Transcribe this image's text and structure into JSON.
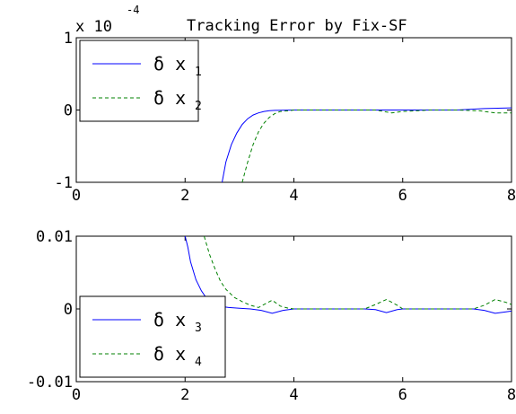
{
  "chart_data": [
    {
      "type": "line",
      "title": "Tracking Error by Fix-SF",
      "scale_label": "x 10",
      "scale_exponent": "-4",
      "xlim": [
        0,
        8
      ],
      "ylim": [
        -1,
        1
      ],
      "xticks": [
        "0",
        "2",
        "4",
        "6",
        "8"
      ],
      "yticks": [
        "-1",
        "0",
        "1"
      ],
      "legend": "top-left",
      "series": [
        {
          "name_symbol": "δ x",
          "name_subscript": "1",
          "color": "#0000ff",
          "style": "solid",
          "x": [
            2.68,
            2.75,
            2.85,
            2.95,
            3.05,
            3.15,
            3.25,
            3.35,
            3.45,
            3.55,
            3.65,
            3.8,
            4.0,
            4.5,
            5.0,
            5.5,
            6.0,
            6.5,
            7.0,
            7.5,
            8.0
          ],
          "y": [
            -1.0,
            -0.72,
            -0.48,
            -0.32,
            -0.2,
            -0.12,
            -0.07,
            -0.04,
            -0.02,
            -0.01,
            -0.005,
            -0.002,
            0.0,
            0.0,
            0.0,
            0.0,
            0.0,
            0.0,
            0.0,
            0.02,
            0.03
          ]
        },
        {
          "name_symbol": "δ x",
          "name_subscript": "2",
          "color": "#008000",
          "style": "dashed",
          "x": [
            3.05,
            3.15,
            3.25,
            3.35,
            3.45,
            3.55,
            3.65,
            3.75,
            3.9,
            4.0,
            4.5,
            5.0,
            5.5,
            5.8,
            6.0,
            6.5,
            7.0,
            7.4,
            7.7,
            8.0
          ],
          "y": [
            -1.0,
            -0.72,
            -0.48,
            -0.3,
            -0.18,
            -0.1,
            -0.05,
            -0.02,
            -0.01,
            0.0,
            0.0,
            0.0,
            0.0,
            -0.04,
            -0.02,
            0.0,
            0.0,
            -0.01,
            -0.04,
            -0.04
          ]
        }
      ]
    },
    {
      "type": "line",
      "xlim": [
        0,
        8
      ],
      "ylim": [
        -0.01,
        0.01
      ],
      "xticks": [
        "0",
        "2",
        "4",
        "6",
        "8"
      ],
      "yticks": [
        "-0.01",
        "0",
        "0.01"
      ],
      "legend": "bottom-left",
      "series": [
        {
          "name_symbol": "δ x",
          "name_subscript": "3",
          "color": "#0000ff",
          "style": "solid",
          "x": [
            2.0,
            2.05,
            2.1,
            2.2,
            2.3,
            2.4,
            2.5,
            2.6,
            2.8,
            3.0,
            3.2,
            3.4,
            3.6,
            3.8,
            4.0,
            4.5,
            5.0,
            5.3,
            5.5,
            5.7,
            5.9,
            6.0,
            6.5,
            7.0,
            7.3,
            7.5,
            7.7,
            7.9,
            8.0
          ],
          "y": [
            0.01,
            0.0085,
            0.0065,
            0.004,
            0.0025,
            0.0014,
            0.0008,
            0.0004,
            0.0002,
            0.0001,
            0.0,
            -0.0002,
            -0.0006,
            -0.0002,
            0.0,
            0.0,
            0.0,
            0.0,
            -0.0001,
            -0.0005,
            -0.0001,
            0.0,
            0.0,
            0.0,
            0.0,
            -0.0002,
            -0.0006,
            -0.0004,
            -0.0003
          ]
        },
        {
          "name_symbol": "δ x",
          "name_subscript": "4",
          "color": "#008000",
          "style": "dashed",
          "x": [
            2.35,
            2.45,
            2.55,
            2.65,
            2.75,
            2.9,
            3.05,
            3.2,
            3.35,
            3.5,
            3.6,
            3.75,
            3.9,
            4.0,
            4.5,
            5.0,
            5.3,
            5.5,
            5.7,
            5.9,
            6.0,
            6.5,
            7.0,
            7.3,
            7.5,
            7.7,
            7.9,
            8.0
          ],
          "y": [
            0.01,
            0.0075,
            0.0055,
            0.0038,
            0.0027,
            0.0016,
            0.001,
            0.0005,
            0.0002,
            0.0008,
            0.0012,
            0.0004,
            0.0001,
            0.0,
            0.0,
            0.0,
            0.0,
            0.0006,
            0.0013,
            0.0005,
            0.0,
            0.0,
            0.0,
            0.0,
            0.0005,
            0.0013,
            0.0009,
            0.0006
          ]
        }
      ]
    }
  ]
}
